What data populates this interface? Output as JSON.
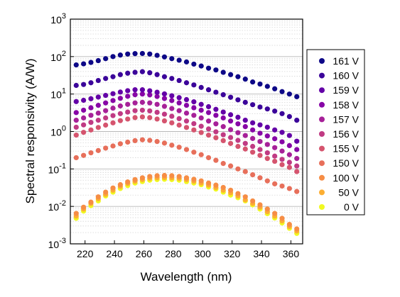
{
  "chart_data": {
    "type": "scatter",
    "title": "",
    "xlabel": "Wavelength (nm)",
    "ylabel": "Spectral responsivity (A/W)",
    "xlim": [
      210,
      368
    ],
    "ylim": [
      0.001,
      1000
    ],
    "y_scale": "log",
    "x_ticks": [
      220,
      240,
      260,
      280,
      300,
      320,
      340,
      360
    ],
    "y_ticks": [
      {
        "value": 0.001,
        "base": "10",
        "exp": "-3"
      },
      {
        "value": 0.01,
        "base": "10",
        "exp": "-2"
      },
      {
        "value": 0.1,
        "base": "10",
        "exp": "-1"
      },
      {
        "value": 1,
        "base": "10",
        "exp": "0"
      },
      {
        "value": 10,
        "base": "10",
        "exp": "1"
      },
      {
        "value": 100,
        "base": "10",
        "exp": "2"
      },
      {
        "value": 1000,
        "base": "10",
        "exp": "3"
      }
    ],
    "grid": "major horizontal lines with minor dotted lines",
    "legend_position": "right",
    "x": [
      214,
      219,
      224,
      229,
      234,
      239,
      244,
      249,
      254,
      259,
      264,
      269,
      274,
      279,
      284,
      289,
      294,
      299,
      304,
      309,
      314,
      319,
      324,
      329,
      334,
      339,
      344,
      349,
      354,
      359,
      364
    ],
    "series": [
      {
        "name": "161 V",
        "color": "#0d0887",
        "values": [
          60,
          64,
          70,
          78,
          88,
          100,
          110,
          117,
          120,
          121,
          117,
          108,
          98,
          88,
          80,
          72,
          63,
          56,
          49,
          44,
          38,
          33,
          29,
          25,
          21,
          18.5,
          16,
          13.8,
          11.6,
          10.0,
          8.5
        ]
      },
      {
        "name": "160 V",
        "color": "#3b049a",
        "values": [
          17,
          18,
          20,
          23,
          26,
          29,
          33,
          36,
          38,
          39.5,
          37,
          33,
          29,
          26,
          23,
          20,
          17.5,
          15,
          13,
          11.2,
          9.6,
          8.2,
          7.0,
          6.0,
          5.2,
          4.5,
          4.0,
          3.5,
          3.0,
          2.5,
          2.0
        ]
      },
      {
        "name": "159 V",
        "color": "#6300a7",
        "values": [
          6.3,
          6.8,
          7.5,
          8.3,
          9.2,
          10.2,
          11.3,
          12.3,
          13,
          13,
          12.2,
          11.2,
          10.1,
          9.0,
          8.0,
          7.1,
          6.2,
          5.3,
          4.6,
          3.9,
          3.3,
          2.8,
          2.4,
          2.0,
          1.7,
          1.5,
          1.3,
          1.1,
          0.95,
          0.78,
          0.55
        ]
      },
      {
        "name": "158 V",
        "color": "#8706a6",
        "values": [
          3.2,
          3.7,
          4.3,
          5.0,
          5.8,
          6.7,
          7.7,
          8.7,
          9.6,
          10.0,
          9.5,
          8.6,
          7.6,
          6.7,
          5.8,
          5.0,
          4.3,
          3.7,
          3.2,
          2.7,
          2.3,
          1.9,
          1.6,
          1.35,
          1.1,
          0.9,
          0.76,
          0.64,
          0.53,
          0.42,
          0.33
        ]
      },
      {
        "name": "157 V",
        "color": "#a62098",
        "values": [
          2.0,
          2.3,
          2.7,
          3.1,
          3.6,
          4.2,
          4.8,
          5.3,
          5.8,
          6.0,
          5.8,
          5.3,
          4.7,
          4.1,
          3.6,
          3.1,
          2.7,
          2.3,
          1.9,
          1.6,
          1.35,
          1.12,
          0.93,
          0.78,
          0.65,
          0.54,
          0.45,
          0.37,
          0.3,
          0.24,
          0.19
        ]
      },
      {
        "name": "156 V",
        "color": "#c03a83",
        "values": [
          1.3,
          1.5,
          1.75,
          2.0,
          2.3,
          2.65,
          3.0,
          3.3,
          3.6,
          3.7,
          3.55,
          3.25,
          2.9,
          2.55,
          2.2,
          1.9,
          1.62,
          1.38,
          1.17,
          0.98,
          0.82,
          0.69,
          0.58,
          0.48,
          0.4,
          0.33,
          0.27,
          0.22,
          0.18,
          0.15,
          0.12
        ]
      },
      {
        "name": "155 V",
        "color": "#d5546e",
        "values": [
          0.8,
          0.95,
          1.1,
          1.28,
          1.48,
          1.7,
          1.95,
          2.15,
          2.35,
          2.45,
          2.35,
          2.15,
          1.92,
          1.7,
          1.48,
          1.28,
          1.1,
          0.94,
          0.8,
          0.68,
          0.57,
          0.48,
          0.4,
          0.34,
          0.28,
          0.23,
          0.19,
          0.16,
          0.13,
          0.11,
          0.085
        ]
      },
      {
        "name": "150 V",
        "color": "#e76f5a",
        "values": [
          0.2,
          0.23,
          0.27,
          0.31,
          0.36,
          0.41,
          0.47,
          0.52,
          0.57,
          0.6,
          0.58,
          0.54,
          0.49,
          0.43,
          0.38,
          0.33,
          0.28,
          0.24,
          0.2,
          0.17,
          0.14,
          0.12,
          0.1,
          0.085,
          0.07,
          0.058,
          0.048,
          0.04,
          0.035,
          0.03,
          0.025
        ]
      },
      {
        "name": "100 V",
        "color": "#f68d45",
        "values": [
          0.0065,
          0.0095,
          0.013,
          0.018,
          0.024,
          0.031,
          0.038,
          0.045,
          0.052,
          0.058,
          0.063,
          0.066,
          0.067,
          0.066,
          0.063,
          0.058,
          0.053,
          0.048,
          0.042,
          0.037,
          0.032,
          0.027,
          0.022,
          0.018,
          0.014,
          0.011,
          0.0085,
          0.0065,
          0.0048,
          0.0033,
          0.0025
        ]
      },
      {
        "name": "50 V",
        "color": "#fcae32",
        "values": [
          0.0055,
          0.0085,
          0.012,
          0.016,
          0.021,
          0.027,
          0.034,
          0.041,
          0.047,
          0.052,
          0.056,
          0.058,
          0.059,
          0.058,
          0.056,
          0.052,
          0.047,
          0.042,
          0.037,
          0.032,
          0.027,
          0.023,
          0.019,
          0.015,
          0.012,
          0.0095,
          0.0072,
          0.0055,
          0.0041,
          0.0029,
          0.0022
        ]
      },
      {
        "name": "0 V",
        "color": "#f0f921",
        "values": [
          0.0048,
          0.0075,
          0.0105,
          0.014,
          0.019,
          0.024,
          0.03,
          0.036,
          0.042,
          0.046,
          0.05,
          0.052,
          0.053,
          0.052,
          0.05,
          0.046,
          0.042,
          0.038,
          0.033,
          0.029,
          0.024,
          0.02,
          0.017,
          0.014,
          0.011,
          0.0085,
          0.0064,
          0.0049,
          0.0036,
          0.0026,
          0.0019
        ]
      }
    ]
  }
}
